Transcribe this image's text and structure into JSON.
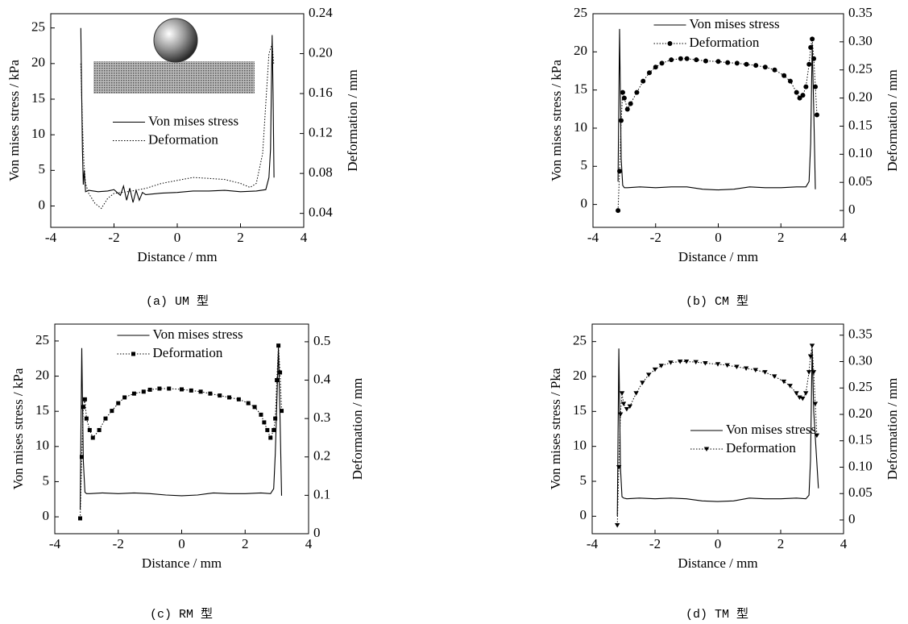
{
  "chart_data": [
    {
      "type": "line",
      "caption": "(a) UM 型",
      "xlabel": "Distance / mm",
      "ylabel": "Von mises stress / kPa",
      "y2label": "Deformation / mm",
      "xlim": [
        -4,
        4
      ],
      "xticks": [
        -4,
        -2,
        0,
        2,
        4
      ],
      "ylim": [
        -3,
        27
      ],
      "yticks": [
        0,
        5,
        10,
        15,
        20,
        25
      ],
      "y2lim": [
        0.026,
        0.24
      ],
      "y2ticks": [
        0.04,
        0.08,
        {
          "value": 0.12,
          "label": "0.12"
        },
        0.16,
        {
          "value": 0.2,
          "label": "0.20"
        },
        0.24
      ],
      "legend": "center",
      "series": [
        {
          "name": "Von mises stress",
          "color": "#000000",
          "style": "solid",
          "x": [
            -3.05,
            -3.0,
            -2.97,
            -2.94,
            -2.9,
            -2.8,
            -2.5,
            -2.2,
            -2.0,
            -1.8,
            -1.7,
            -1.6,
            -1.5,
            -1.4,
            -1.3,
            -1.2,
            -1.1,
            -1.0,
            -0.5,
            0,
            0.5,
            1.0,
            1.5,
            2.0,
            2.5,
            2.8,
            2.9,
            2.95,
            3.0,
            3.03,
            3.06
          ],
          "values": [
            25,
            8,
            3,
            5,
            2,
            2.2,
            2,
            2.1,
            2.3,
            1.5,
            2.8,
            0.8,
            2.5,
            0.5,
            2.2,
            0.8,
            1.9,
            1.6,
            1.8,
            1.9,
            2.1,
            2.1,
            2.2,
            2.0,
            2.1,
            2.3,
            4,
            8,
            24,
            16,
            4
          ]
        },
        {
          "name": "Deformation",
          "color": "#000000",
          "style": "dotted",
          "axis": "y2",
          "x": [
            -3.05,
            -3.0,
            -2.95,
            -2.9,
            -2.8,
            -2.6,
            -2.4,
            -2.2,
            -2.0,
            -1.5,
            -1.0,
            -0.5,
            0,
            0.5,
            1.0,
            1.5,
            2.0,
            2.3,
            2.5,
            2.7,
            2.8,
            2.9,
            3.0,
            3.05
          ],
          "values": [
            0.19,
            0.13,
            0.09,
            0.07,
            0.06,
            0.05,
            0.045,
            0.055,
            0.06,
            0.062,
            0.065,
            0.07,
            0.073,
            0.076,
            0.075,
            0.074,
            0.07,
            0.066,
            0.07,
            0.1,
            0.15,
            0.2,
            0.21,
            0.19
          ]
        }
      ]
    },
    {
      "type": "line",
      "caption": "(b) CM 型",
      "xlabel": "Distance / mm",
      "ylabel": "Von mises stress / kPa",
      "y2label": "Deformation / mm",
      "xlim": [
        -4,
        4
      ],
      "xticks": [
        -4,
        -2,
        0,
        2,
        4
      ],
      "ylim": [
        -3,
        25
      ],
      "yticks": [
        0,
        5,
        10,
        15,
        20,
        25
      ],
      "y2lim": [
        -0.03,
        0.35
      ],
      "y2ticks": [
        0,
        0.05,
        {
          "value": 0.1,
          "label": "0.10"
        },
        0.15,
        {
          "value": 0.2,
          "label": "0.20"
        },
        0.25,
        {
          "value": 0.3,
          "label": "0.30"
        },
        0.35
      ],
      "legend": "upper center",
      "series": [
        {
          "name": "Von mises stress",
          "color": "#000000",
          "style": "solid",
          "x": [
            -3.2,
            -3.15,
            -3.1,
            -3.05,
            -3.0,
            -2.9,
            -2.5,
            -2.0,
            -1.5,
            -1.0,
            -0.5,
            0,
            0.5,
            1.0,
            1.5,
            2.0,
            2.5,
            2.8,
            2.9,
            2.95,
            3.0,
            3.05,
            3.1
          ],
          "values": [
            3,
            23,
            6,
            2.5,
            2.2,
            2.2,
            2.3,
            2.2,
            2.3,
            2.3,
            2.0,
            1.9,
            2.0,
            2.3,
            2.2,
            2.2,
            2.3,
            2.3,
            3,
            8,
            21,
            12,
            2
          ]
        },
        {
          "name": "Deformation",
          "color": "#000000",
          "style": "dotted",
          "marker": "circle",
          "axis": "y2",
          "x": [
            -3.2,
            -3.15,
            -3.1,
            -3.05,
            -3.0,
            -2.9,
            -2.8,
            -2.6,
            -2.4,
            -2.2,
            -2.0,
            -1.8,
            -1.5,
            -1.2,
            -1.0,
            -0.7,
            -0.4,
            0,
            0.3,
            0.6,
            0.9,
            1.2,
            1.5,
            1.8,
            2.1,
            2.3,
            2.5,
            2.6,
            2.7,
            2.8,
            2.9,
            2.95,
            3.0,
            3.05,
            3.1,
            3.15
          ],
          "values": [
            0,
            0.07,
            0.16,
            0.21,
            0.2,
            0.18,
            0.19,
            0.21,
            0.23,
            0.245,
            0.255,
            0.262,
            0.268,
            0.27,
            0.27,
            0.268,
            0.266,
            0.265,
            0.263,
            0.262,
            0.26,
            0.258,
            0.255,
            0.25,
            0.24,
            0.23,
            0.21,
            0.2,
            0.205,
            0.22,
            0.26,
            0.29,
            0.305,
            0.27,
            0.22,
            0.17
          ]
        }
      ]
    },
    {
      "type": "line",
      "caption": "(c) RM 型",
      "xlabel": "Distance / mm",
      "ylabel": "Von mises stress / kPa",
      "y2label": "Deformation / mm",
      "xlim": [
        -4,
        4
      ],
      "xticks": [
        -4,
        -2,
        0,
        2,
        4
      ],
      "ylim": [
        -2.4,
        27.4
      ],
      "yticks": [
        0,
        5,
        10,
        15,
        20,
        25
      ],
      "y2lim": [
        0,
        0.546
      ],
      "y2ticks": [
        0,
        0.1,
        0.2,
        0.3,
        0.4,
        0.5
      ],
      "legend": "upper center",
      "series": [
        {
          "name": "Von mises stress",
          "color": "#000000",
          "style": "solid",
          "x": [
            -3.2,
            -3.15,
            -3.1,
            -3.05,
            -3.0,
            -2.9,
            -2.5,
            -2.0,
            -1.5,
            -1.0,
            -0.5,
            0,
            0.5,
            1.0,
            1.5,
            2.0,
            2.5,
            2.8,
            2.9,
            2.95,
            3.05,
            3.1,
            3.15
          ],
          "values": [
            1,
            24,
            8,
            3.5,
            3.3,
            3.3,
            3.4,
            3.3,
            3.4,
            3.3,
            3.1,
            3.0,
            3.1,
            3.4,
            3.3,
            3.3,
            3.4,
            3.3,
            4,
            9,
            24,
            14,
            3
          ]
        },
        {
          "name": "Deformation",
          "color": "#000000",
          "style": "dotted",
          "marker": "square",
          "axis": "y2",
          "x": [
            -3.2,
            -3.15,
            -3.1,
            -3.05,
            -3.0,
            -2.9,
            -2.8,
            -2.6,
            -2.4,
            -2.2,
            -2.0,
            -1.8,
            -1.5,
            -1.2,
            -1.0,
            -0.7,
            -0.4,
            0,
            0.3,
            0.6,
            0.9,
            1.2,
            1.5,
            1.8,
            2.1,
            2.3,
            2.5,
            2.6,
            2.7,
            2.8,
            2.9,
            2.95,
            3.0,
            3.05,
            3.1,
            3.15
          ],
          "values": [
            0.04,
            0.2,
            0.33,
            0.35,
            0.3,
            0.27,
            0.25,
            0.27,
            0.3,
            0.32,
            0.34,
            0.355,
            0.365,
            0.37,
            0.375,
            0.378,
            0.378,
            0.376,
            0.373,
            0.37,
            0.365,
            0.36,
            0.355,
            0.35,
            0.34,
            0.33,
            0.31,
            0.29,
            0.27,
            0.25,
            0.27,
            0.3,
            0.4,
            0.49,
            0.42,
            0.32
          ]
        }
      ]
    },
    {
      "type": "line",
      "caption": "(d) TM 型",
      "xlabel": "Distance / mm",
      "ylabel": "Von mises stress / Pka",
      "y2label": "Deformation / mm",
      "xlim": [
        -4,
        4
      ],
      "xticks": [
        -4,
        -2,
        0,
        2,
        4
      ],
      "ylim": [
        -2.5,
        27.5
      ],
      "yticks": [
        0,
        5,
        10,
        15,
        20,
        25
      ],
      "y2lim": [
        -0.026,
        0.371
      ],
      "y2ticks": [
        0,
        0.05,
        {
          "value": 0.1,
          "label": "0.10"
        },
        0.15,
        {
          "value": 0.2,
          "label": "0.20"
        },
        0.25,
        {
          "value": 0.3,
          "label": "0.30"
        },
        0.35
      ],
      "legend": "center right",
      "series": [
        {
          "name": "Von mises stress",
          "color": "#000000",
          "style": "solid",
          "x": [
            -3.2,
            -3.15,
            -3.1,
            -3.05,
            -3.0,
            -2.9,
            -2.5,
            -2.0,
            -1.5,
            -1.0,
            -0.5,
            0,
            0.5,
            1.0,
            1.5,
            2.0,
            2.5,
            2.8,
            2.9,
            2.95,
            3.0,
            3.05,
            3.2
          ],
          "values": [
            0,
            24,
            7,
            2.8,
            2.6,
            2.5,
            2.6,
            2.5,
            2.6,
            2.5,
            2.2,
            2.1,
            2.2,
            2.6,
            2.5,
            2.5,
            2.6,
            2.5,
            3,
            8,
            24,
            15,
            4
          ]
        },
        {
          "name": "Deformation",
          "color": "#000000",
          "style": "dotted",
          "marker": "triangle",
          "axis": "y2",
          "x": [
            -3.2,
            -3.15,
            -3.1,
            -3.05,
            -3.0,
            -2.9,
            -2.8,
            -2.6,
            -2.4,
            -2.2,
            -2.0,
            -1.8,
            -1.5,
            -1.2,
            -1.0,
            -0.7,
            -0.4,
            0,
            0.3,
            0.6,
            0.9,
            1.2,
            1.5,
            1.8,
            2.1,
            2.3,
            2.5,
            2.6,
            2.7,
            2.8,
            2.9,
            2.95,
            3.0,
            3.05,
            3.1,
            3.15
          ],
          "values": [
            -0.01,
            0.1,
            0.2,
            0.24,
            0.22,
            0.21,
            0.215,
            0.24,
            0.26,
            0.275,
            0.285,
            0.292,
            0.298,
            0.3,
            0.3,
            0.299,
            0.297,
            0.295,
            0.293,
            0.29,
            0.287,
            0.284,
            0.28,
            0.272,
            0.262,
            0.254,
            0.24,
            0.232,
            0.23,
            0.24,
            0.28,
            0.31,
            0.33,
            0.28,
            0.22,
            0.16
          ]
        }
      ]
    }
  ]
}
